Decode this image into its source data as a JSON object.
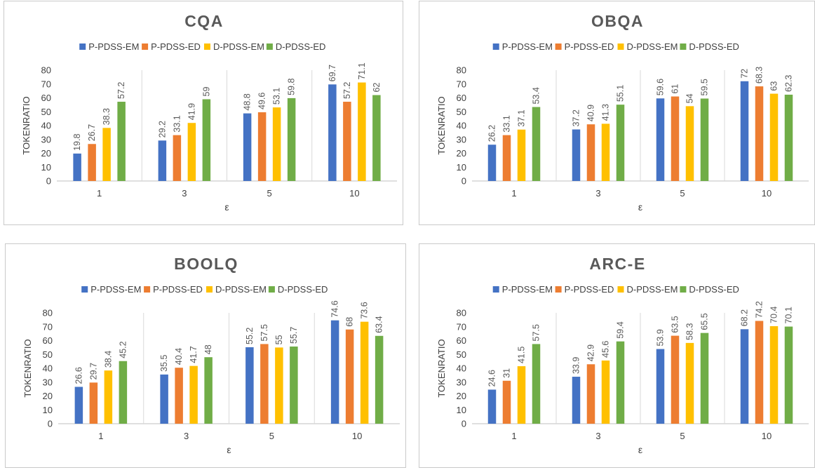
{
  "chart_data": [
    {
      "type": "bar",
      "title": "CQA",
      "xlabel": "ε",
      "ylabel": "TOKENRATIO",
      "ylim": [
        0,
        80
      ],
      "yticks": [
        0,
        10,
        20,
        30,
        40,
        50,
        60,
        70,
        80
      ],
      "grid": false,
      "legend": "top",
      "categories": [
        "1",
        "3",
        "5",
        "10"
      ],
      "series": [
        {
          "name": "P-PDSS-EM",
          "color": "#4472C4",
          "values": [
            19.8,
            29.2,
            48.8,
            69.7
          ]
        },
        {
          "name": "P-PDSS-ED",
          "color": "#ED7D31",
          "values": [
            26.7,
            33.1,
            49.6,
            57.2
          ]
        },
        {
          "name": "D-PDSS-EM",
          "color": "#FFC000",
          "values": [
            38.3,
            41.9,
            53.1,
            71.1
          ]
        },
        {
          "name": "D-PDSS-ED",
          "color": "#70AD47",
          "values": [
            57.2,
            59,
            59.8,
            62
          ]
        }
      ]
    },
    {
      "type": "bar",
      "title": "OBQA",
      "xlabel": "ε",
      "ylabel": "TOKENRATIO",
      "ylim": [
        0,
        80
      ],
      "yticks": [
        0,
        10,
        20,
        30,
        40,
        50,
        60,
        70,
        80
      ],
      "grid": false,
      "legend": "top",
      "categories": [
        "1",
        "3",
        "5",
        "10"
      ],
      "series": [
        {
          "name": "P-PDSS-EM",
          "color": "#4472C4",
          "values": [
            26.2,
            37.2,
            59.6,
            72
          ]
        },
        {
          "name": "P-PDSS-ED",
          "color": "#ED7D31",
          "values": [
            33.1,
            40.9,
            61,
            68.3
          ]
        },
        {
          "name": "D-PDSS-EM",
          "color": "#FFC000",
          "values": [
            37.1,
            41.3,
            54,
            63
          ]
        },
        {
          "name": "D-PDSS-ED",
          "color": "#70AD47",
          "values": [
            53.4,
            55.1,
            59.5,
            62.3
          ]
        }
      ]
    },
    {
      "type": "bar",
      "title": "BOOLQ",
      "xlabel": "ε",
      "ylabel": "TOKENRATIO",
      "ylim": [
        0,
        80
      ],
      "yticks": [
        0,
        10,
        20,
        30,
        40,
        50,
        60,
        70,
        80
      ],
      "grid": false,
      "legend": "top",
      "categories": [
        "1",
        "3",
        "5",
        "10"
      ],
      "series": [
        {
          "name": "P-PDSS-EM",
          "color": "#4472C4",
          "values": [
            26.6,
            35.5,
            55.2,
            74.6
          ]
        },
        {
          "name": "P-PDSS-ED",
          "color": "#ED7D31",
          "values": [
            29.7,
            40.4,
            57.5,
            68
          ]
        },
        {
          "name": "D-PDSS-EM",
          "color": "#FFC000",
          "values": [
            38.4,
            41.7,
            55,
            73.6
          ]
        },
        {
          "name": "D-PDSS-ED",
          "color": "#70AD47",
          "values": [
            45.2,
            48,
            55.7,
            63.4
          ]
        }
      ]
    },
    {
      "type": "bar",
      "title": "ARC-E",
      "xlabel": "ε",
      "ylabel": "TOKENRATIO",
      "ylim": [
        0,
        80
      ],
      "yticks": [
        0,
        10,
        20,
        30,
        40,
        50,
        60,
        70,
        80
      ],
      "grid": false,
      "legend": "top",
      "categories": [
        "1",
        "3",
        "5",
        "10"
      ],
      "series": [
        {
          "name": "P-PDSS-EM",
          "color": "#4472C4",
          "values": [
            24.6,
            33.9,
            53.9,
            68.2
          ]
        },
        {
          "name": "P-PDSS-ED",
          "color": "#ED7D31",
          "values": [
            31,
            42.9,
            63.5,
            74.2
          ]
        },
        {
          "name": "D-PDSS-EM",
          "color": "#FFC000",
          "values": [
            41.5,
            45.6,
            58.3,
            70.4
          ]
        },
        {
          "name": "D-PDSS-ED",
          "color": "#70AD47",
          "values": [
            57.5,
            59.4,
            65.5,
            70.1
          ]
        }
      ]
    }
  ]
}
